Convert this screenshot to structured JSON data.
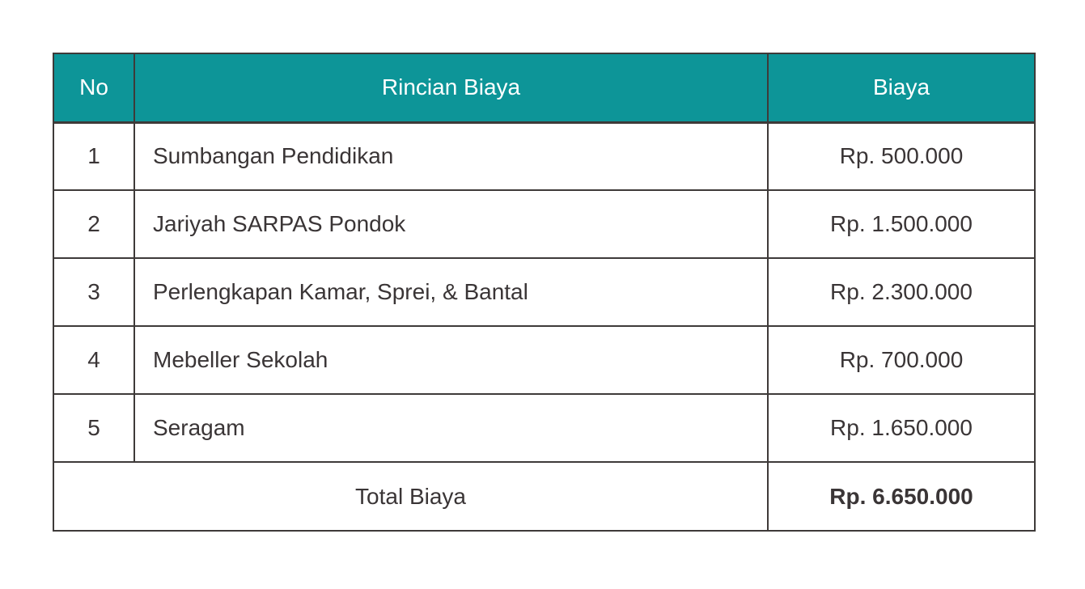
{
  "chart_data": {
    "type": "table",
    "title": "",
    "columns": [
      "No",
      "Rincian Biaya",
      "Biaya"
    ],
    "rows": [
      [
        "1",
        "Sumbangan Pendidikan",
        "Rp. 500.000"
      ],
      [
        "2",
        "Jariyah SARPAS Pondok",
        "Rp. 1.500.000"
      ],
      [
        "3",
        "Perlengkapan Kamar, Sprei, & Bantal",
        "Rp. 2.300.000"
      ],
      [
        "4",
        "Mebeller Sekolah",
        "Rp. 700.000"
      ],
      [
        "5",
        "Seragam",
        "Rp. 1.650.000"
      ]
    ],
    "footer": [
      "Total Biaya",
      "Rp. 6.650.000"
    ],
    "amounts_idr": [
      500000,
      1500000,
      2300000,
      700000,
      1650000
    ],
    "total_idr": 6650000,
    "layout_hints": {
      "header_row": true,
      "footer_label_colspan": 2,
      "item_column_align": "left",
      "other_columns_align": "center",
      "total_amount_bold": true
    }
  },
  "colors": {
    "header_bg": "#0d9598",
    "header_text": "#ffffff",
    "border": "#3e3a39",
    "body_text": "#3a3536",
    "page_bg": "#ffffff"
  }
}
